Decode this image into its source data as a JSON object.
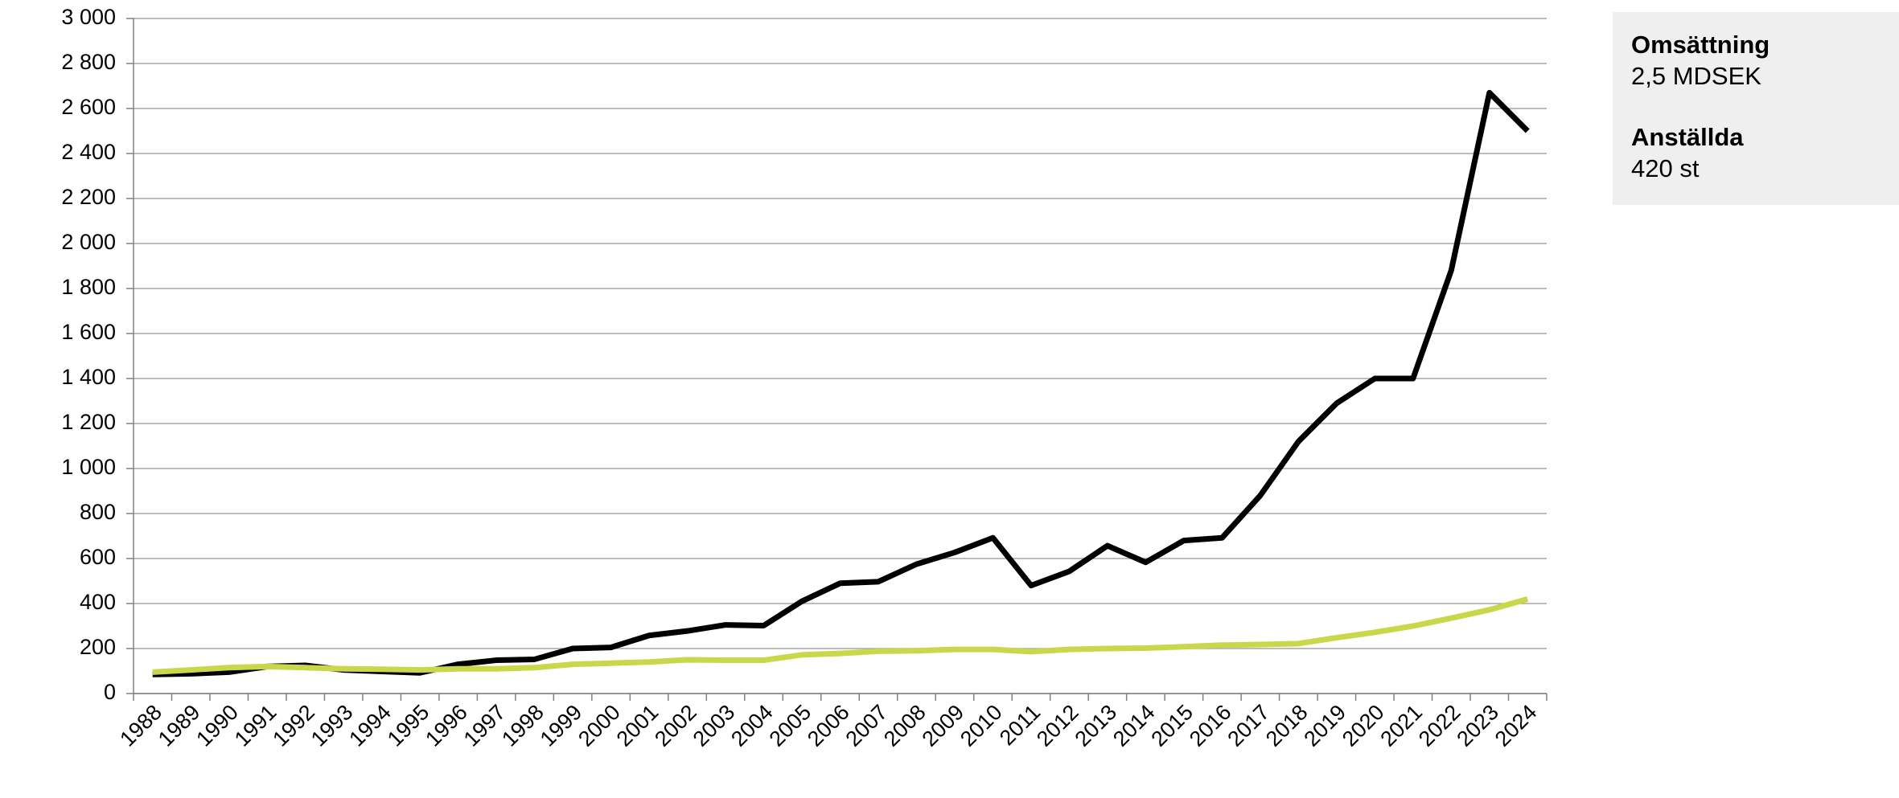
{
  "chart_data": {
    "type": "line",
    "categories": [
      "1988",
      "1989",
      "1990",
      "1991",
      "1992",
      "1993",
      "1994",
      "1995",
      "1996",
      "1997",
      "1998",
      "1999",
      "2000",
      "2001",
      "2002",
      "2003",
      "2004",
      "2005",
      "2006",
      "2007",
      "2008",
      "2009",
      "2010",
      "2011",
      "2012",
      "2013",
      "2014",
      "2015",
      "2016",
      "2017",
      "2018",
      "2019",
      "2020",
      "2021",
      "2022",
      "2023",
      "2024"
    ],
    "series": [
      {
        "color": "#000000",
        "values": [
          85,
          88,
          95,
          120,
          125,
          105,
          98,
          92,
          130,
          148,
          152,
          200,
          205,
          258,
          278,
          305,
          302,
          410,
          490,
          497,
          575,
          627,
          692,
          480,
          543,
          657,
          583,
          680,
          692,
          880,
          1120,
          1290,
          1400,
          1400,
          1880,
          2670,
          2500
        ]
      },
      {
        "color": "#c8d84a",
        "values": [
          95,
          105,
          115,
          120,
          115,
          110,
          108,
          105,
          110,
          110,
          115,
          130,
          135,
          140,
          150,
          148,
          148,
          172,
          178,
          188,
          190,
          196,
          196,
          186,
          196,
          200,
          202,
          208,
          215,
          218,
          222,
          248,
          272,
          300,
          335,
          372,
          420
        ]
      }
    ],
    "ylim": [
      0,
      3000
    ],
    "yticks": [
      0,
      200,
      400,
      600,
      800,
      {
        "value": 1000,
        "label": "1 000"
      },
      {
        "value": 1200,
        "label": "1 200"
      },
      {
        "value": 1400,
        "label": "1 400"
      },
      {
        "value": 1600,
        "label": "1 600"
      },
      {
        "value": 1800,
        "label": "1 800"
      },
      {
        "value": 2000,
        "label": "2 000"
      },
      {
        "value": 2200,
        "label": "2 200"
      },
      {
        "value": 2400,
        "label": "2 400"
      },
      {
        "value": 2600,
        "label": "2 600"
      },
      {
        "value": 2800,
        "label": "2 800"
      },
      {
        "value": 3000,
        "label": "3 000"
      }
    ],
    "grid": true
  },
  "info_box": [
    {
      "label": "Omsättning",
      "value": "2,5 MDSEK"
    },
    {
      "label": "Anställda",
      "value": "420 st"
    }
  ]
}
